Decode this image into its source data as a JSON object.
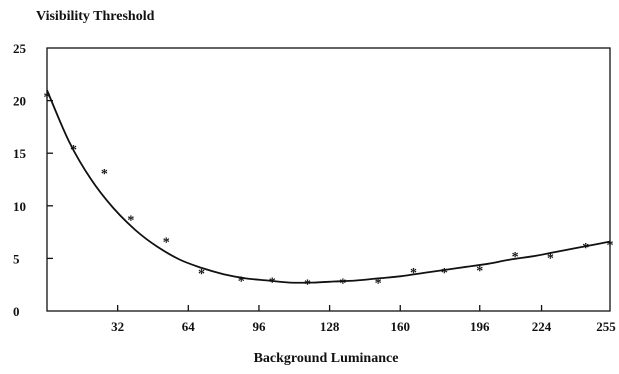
{
  "chart_data": {
    "type": "scatter",
    "title": "Visibility  Threshold",
    "xlabel": "Background   Luminance",
    "ylabel": "",
    "xlim": [
      0,
      255
    ],
    "ylim": [
      0,
      25
    ],
    "x_ticks": [
      "32",
      "64",
      "96",
      "128",
      "160",
      "196",
      "224",
      "255"
    ],
    "x_tick_values": [
      32,
      64,
      96,
      128,
      160,
      196,
      224,
      255
    ],
    "y_ticks": [
      "0",
      "5",
      "10",
      "15",
      "20",
      "25"
    ],
    "y_tick_values": [
      0,
      5,
      10,
      15,
      20,
      25
    ],
    "grid": false,
    "marker": "*",
    "series": [
      {
        "type": "scatter",
        "x": [
          0,
          12,
          26,
          38,
          54,
          70,
          88,
          102,
          118,
          134,
          150,
          166,
          180,
          196,
          212,
          228,
          244,
          255
        ],
        "y": [
          20.5,
          15.5,
          13.2,
          8.8,
          6.7,
          3.7,
          3.0,
          2.9,
          2.7,
          2.8,
          2.8,
          3.8,
          3.8,
          4.0,
          5.3,
          5.2,
          6.2,
          6.4
        ]
      },
      {
        "type": "line",
        "x": [
          0,
          10,
          20,
          30,
          40,
          50,
          60,
          70,
          80,
          90,
          100,
          110,
          120,
          130,
          140,
          150,
          160,
          170,
          180,
          190,
          200,
          210,
          220,
          230,
          240,
          250,
          255
        ],
        "y": [
          21.0,
          16.1,
          12.5,
          9.8,
          7.7,
          6.1,
          4.9,
          4.1,
          3.5,
          3.1,
          2.9,
          2.7,
          2.7,
          2.8,
          2.9,
          3.1,
          3.3,
          3.6,
          3.9,
          4.2,
          4.5,
          4.9,
          5.2,
          5.6,
          6.0,
          6.4,
          6.6
        ]
      }
    ]
  }
}
